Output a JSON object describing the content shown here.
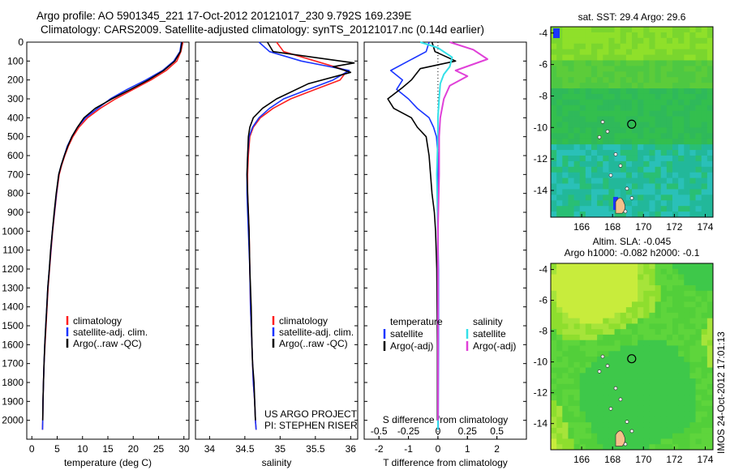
{
  "header": {
    "line1": "Argo profile: AO 5901345_221 17-Oct-2012 20121017_230 9.792S 169.239E",
    "line2": "Climatology: CARS2009. Satellite-adjusted climatology: synTS_20121017.nc (0.14d earlier)"
  },
  "watermark": "IMOS 24-Oct-2012 17:01:13",
  "colors": {
    "clim": "#ff2020",
    "sat": "#1a35ff",
    "argo": "#000000",
    "sat_s": "#33e0e8",
    "argo_s": "#e040d8"
  },
  "chart_data": [
    {
      "type": "line",
      "id": "temperature",
      "xlabel": "temperature (deg C)",
      "ylabel": "",
      "xlim": [
        -1,
        31
      ],
      "ylim": [
        2100,
        0
      ],
      "xticks": [
        0,
        5,
        10,
        15,
        20,
        25,
        30
      ],
      "yticks": [
        0,
        100,
        200,
        300,
        400,
        500,
        600,
        700,
        800,
        900,
        1000,
        1100,
        1200,
        1300,
        1400,
        1500,
        1600,
        1700,
        1800,
        1900,
        2000
      ],
      "legend": {
        "position": "bottom-center",
        "entries": [
          "climatology",
          "satellite-adj. clim.",
          "Argo(..raw -QC)"
        ]
      },
      "series": [
        {
          "name": "climatology",
          "color_key": "clim",
          "x": [
            29.8,
            29.4,
            28.6,
            26.5,
            23.5,
            20.0,
            16.5,
            13.5,
            11.0,
            9.3,
            8.1,
            7.2,
            6.5,
            5.9,
            5.4,
            4.9,
            4.5,
            4.1,
            3.8,
            3.5,
            3.2,
            3.0,
            2.8,
            2.6,
            2.4,
            2.3,
            2.2,
            2.15,
            2.1
          ],
          "y": [
            0,
            50,
            100,
            150,
            200,
            250,
            300,
            350,
            400,
            450,
            500,
            550,
            600,
            650,
            700,
            800,
            900,
            1000,
            1100,
            1200,
            1300,
            1400,
            1500,
            1600,
            1700,
            1800,
            1900,
            2000,
            2050
          ]
        },
        {
          "name": "satellite-adj. clim.",
          "color_key": "sat",
          "x": [
            29.5,
            29.2,
            28.0,
            25.8,
            22.5,
            18.8,
            15.5,
            13.0,
            10.6,
            9.0,
            7.9,
            7.0,
            6.4,
            5.8,
            5.3,
            4.85,
            4.45,
            4.05,
            3.75,
            3.45,
            3.15,
            2.95,
            2.75,
            2.55,
            2.4,
            2.3,
            2.2,
            2.15,
            2.1
          ],
          "y": [
            0,
            50,
            100,
            150,
            200,
            250,
            300,
            350,
            400,
            450,
            500,
            550,
            600,
            650,
            700,
            800,
            900,
            1000,
            1100,
            1200,
            1300,
            1400,
            1500,
            1600,
            1700,
            1800,
            1900,
            2000,
            2050
          ]
        },
        {
          "name": "Argo(..raw -QC)",
          "color_key": "argo",
          "x": [
            29.6,
            29.3,
            28.2,
            26.0,
            23.0,
            19.5,
            15.8,
            12.5,
            10.3,
            9.0,
            7.9,
            7.1,
            6.4,
            5.8,
            5.3,
            4.8,
            4.4,
            4.05,
            3.7,
            3.45,
            3.15,
            2.95,
            2.75,
            2.55,
            2.4,
            2.3,
            2.2,
            2.15
          ],
          "y": [
            0,
            50,
            100,
            150,
            200,
            250,
            300,
            350,
            400,
            450,
            500,
            550,
            600,
            650,
            700,
            800,
            900,
            1000,
            1100,
            1200,
            1300,
            1400,
            1500,
            1600,
            1700,
            1800,
            1900,
            2000
          ]
        }
      ]
    },
    {
      "type": "line",
      "id": "salinity",
      "xlabel": "salinity",
      "ylabel": "",
      "xlim": [
        33.8,
        36.1
      ],
      "ylim": [
        2100,
        0
      ],
      "xticks": [
        34,
        34.5,
        35,
        35.5,
        36
      ],
      "xticklabels": [
        "34",
        "34.5",
        "35",
        "35.5",
        "36"
      ],
      "legend": {
        "position": "bottom-right",
        "entries": [
          "climatology",
          "satellite-adj. clim.",
          "Argo(..raw -QC)"
        ]
      },
      "annotations": [
        "US ARGO PROJECT",
        "PI: STEPHEN RISER"
      ],
      "series": [
        {
          "name": "climatology",
          "color_key": "clim",
          "x": [
            34.95,
            35.05,
            35.5,
            35.95,
            35.85,
            35.5,
            35.15,
            34.9,
            34.72,
            34.62,
            34.57,
            34.55,
            34.54,
            34.54,
            34.55,
            34.56,
            34.57,
            34.58,
            34.6,
            34.61,
            34.62,
            34.64,
            34.65,
            34.66
          ],
          "y": [
            0,
            50,
            100,
            150,
            200,
            250,
            300,
            350,
            400,
            450,
            500,
            600,
            700,
            800,
            900,
            1000,
            1200,
            1400,
            1600,
            1700,
            1800,
            1900,
            2000,
            2050
          ]
        },
        {
          "name": "satellite-adj. clim.",
          "color_key": "sat",
          "x": [
            34.7,
            34.85,
            35.3,
            35.98,
            35.75,
            35.4,
            35.05,
            34.85,
            34.7,
            34.61,
            34.56,
            34.54,
            34.53,
            34.53,
            34.54,
            34.55,
            34.57,
            34.58,
            34.6,
            34.61,
            34.62,
            34.64,
            34.65,
            34.66
          ],
          "y": [
            0,
            50,
            100,
            150,
            200,
            250,
            300,
            350,
            400,
            450,
            500,
            600,
            700,
            800,
            900,
            1000,
            1200,
            1400,
            1600,
            1700,
            1800,
            1900,
            2000,
            2050
          ]
        },
        {
          "name": "Argo(..raw -QC)",
          "color_key": "argo",
          "x": [
            34.82,
            34.9,
            36.05,
            35.75,
            36.0,
            35.4,
            34.95,
            34.75,
            34.62,
            34.57,
            34.55,
            34.54,
            34.53,
            34.54,
            34.55,
            34.56,
            34.57,
            34.59,
            34.6,
            34.61,
            34.63,
            34.64,
            34.65
          ],
          "y": [
            0,
            50,
            110,
            130,
            160,
            220,
            300,
            350,
            400,
            450,
            500,
            600,
            700,
            800,
            900,
            1000,
            1200,
            1400,
            1600,
            1700,
            1800,
            1900,
            2000
          ]
        }
      ]
    },
    {
      "type": "line",
      "id": "difference",
      "xlabel": "T difference from climatology",
      "xlabel2": "S difference from climatology",
      "xlim": [
        -2.5,
        3.0
      ],
      "ylim": [
        2100,
        0
      ],
      "xticks": [
        -2,
        -1,
        0,
        1,
        2
      ],
      "xticks2": [
        -0.5,
        -0.25,
        0,
        0.25,
        0.5
      ],
      "xticklabels2": [
        "-0.5",
        "-0.25",
        "0",
        "0.25",
        "0.5"
      ],
      "legend": {
        "position": "bottom",
        "headers": [
          "temperature",
          "salinity"
        ],
        "entries": [
          "satellite",
          "Argo(-adj)",
          "satellite",
          "Argo(-adj)"
        ]
      },
      "series": [
        {
          "name": "satellite",
          "group": "temperature",
          "color_key": "sat",
          "x": [
            -0.3,
            -0.4,
            -1.0,
            -1.6,
            -1.2,
            -1.4,
            -1.0,
            -0.7,
            -0.3,
            -0.15,
            -0.05,
            0,
            0,
            0,
            0.02,
            0.02,
            0.01
          ],
          "y": [
            0,
            50,
            100,
            150,
            200,
            250,
            300,
            350,
            400,
            450,
            500,
            600,
            800,
            1000,
            1200,
            1600,
            2050
          ]
        },
        {
          "name": "Argo(-adj)",
          "group": "temperature",
          "color_key": "argo",
          "x": [
            -0.2,
            -0.1,
            0.6,
            -0.6,
            -0.9,
            -1.2,
            -1.7,
            -1.5,
            -0.9,
            -0.7,
            -0.4,
            -0.3,
            -0.25,
            -0.2,
            -0.12,
            -0.08,
            -0.04,
            -0.02,
            -0.02
          ],
          "y": [
            0,
            50,
            100,
            140,
            200,
            240,
            300,
            350,
            400,
            450,
            500,
            600,
            700,
            800,
            900,
            1000,
            1200,
            1600,
            2000
          ]
        },
        {
          "name": "satellite",
          "group": "salinity",
          "color_key": "sat_s",
          "x": [
            -0.15,
            0.0,
            0.12,
            0.1,
            0.05,
            0.02,
            0.01,
            0.0,
            0.0,
            -0.01,
            0.0,
            0.0,
            0.0
          ],
          "y": [
            0,
            30,
            80,
            130,
            170,
            220,
            300,
            400,
            500,
            700,
            1000,
            1500,
            2050
          ]
        },
        {
          "name": "Argo(-adj)",
          "group": "salinity",
          "color_key": "argo_s",
          "x": [
            0.1,
            0.3,
            0.42,
            0.15,
            0.25,
            0.1,
            0.05,
            0.02,
            0.01,
            0.01,
            0.0,
            0.0,
            0.0
          ],
          "y": [
            0,
            40,
            90,
            150,
            180,
            230,
            300,
            400,
            500,
            700,
            1000,
            1500,
            2000
          ]
        }
      ]
    },
    {
      "type": "heatmap",
      "id": "sst_map",
      "title": "sat. SST: 29.4  Argo: 29.6",
      "xlim": [
        164,
        174.5
      ],
      "ylim": [
        -15.7,
        -3.6
      ],
      "xticks": [
        166,
        168,
        170,
        172,
        174
      ],
      "yticks": [
        -4,
        -6,
        -8,
        -10,
        -12,
        -14
      ],
      "xticklabels": [
        "166",
        "168",
        "170",
        "172",
        "174"
      ],
      "yticklabels": [
        "-4",
        "-6",
        "-8",
        "-10",
        "-12",
        "-14"
      ],
      "marker": {
        "lon": 169.239,
        "lat": -9.792
      }
    },
    {
      "type": "heatmap",
      "id": "sla_map",
      "title": "Altim. SLA: -0.045",
      "subtitle": "Argo h1000: -0.082  h2000: -0.1",
      "xlim": [
        164,
        174.5
      ],
      "ylim": [
        -15.7,
        -3.6
      ],
      "xticks": [
        166,
        168,
        170,
        172,
        174
      ],
      "yticks": [
        -4,
        -6,
        -8,
        -10,
        -12,
        -14
      ],
      "xticklabels": [
        "166",
        "168",
        "170",
        "172",
        "174"
      ],
      "yticklabels": [
        "-4",
        "-6",
        "-8",
        "-10",
        "-12",
        "-14"
      ],
      "marker": {
        "lon": 169.239,
        "lat": -9.792
      }
    }
  ]
}
